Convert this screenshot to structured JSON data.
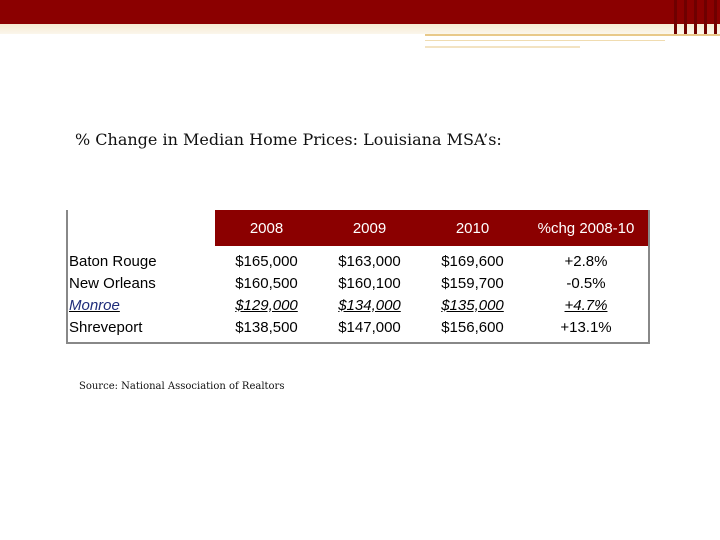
{
  "slide": {
    "title": "% Change in Median Home Prices: Louisiana MSA’s:",
    "source": "Source: National Association of Realtors"
  },
  "table": {
    "headers": [
      "2008",
      "2009",
      "2010",
      "%chg 2008-10"
    ],
    "rows": [
      {
        "name": "Baton Rouge",
        "v2008": "$165,000",
        "v2009": "$163,000",
        "v2010": "$169,600",
        "chg": "+2.8%"
      },
      {
        "name": "New Orleans",
        "v2008": "$160,500",
        "v2009": "$160,100",
        "v2010": "$159,700",
        "chg": "-0.5%"
      },
      {
        "name": "Monroe",
        "v2008": "$129,000",
        "v2009": "$134,000",
        "v2010": "$135,000",
        "chg": "+4.7%"
      },
      {
        "name": "Shreveport",
        "v2008": "$138,500",
        "v2009": "$147,000",
        "v2010": "$156,600",
        "chg": "+13.1%"
      }
    ]
  },
  "colors": {
    "banner": "#8b0000",
    "header_fill": "#8b0000",
    "monroe_text": "#1f2d7a"
  }
}
